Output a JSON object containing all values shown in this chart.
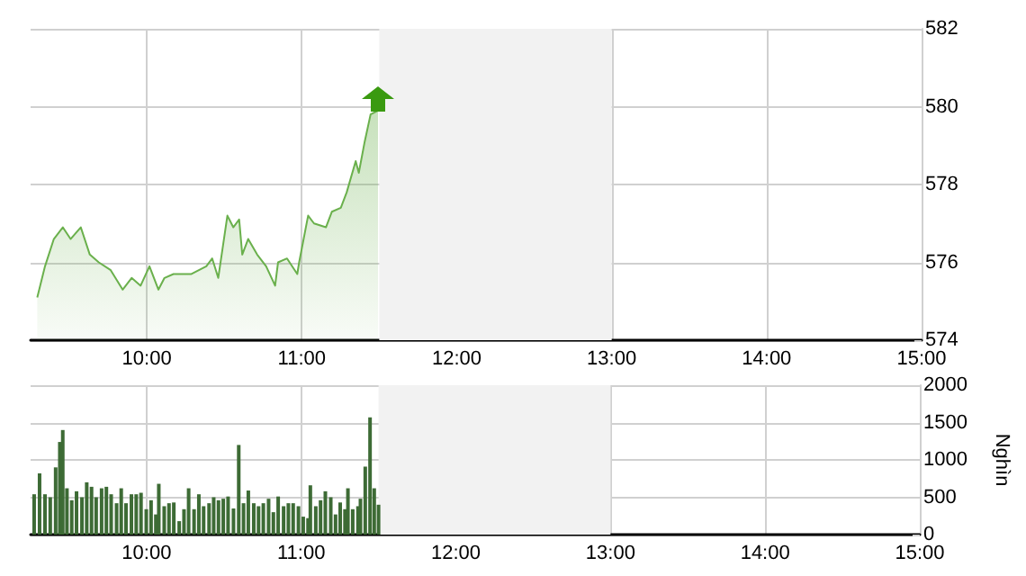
{
  "chart_data": [
    {
      "type": "area",
      "color": "#6ab04c",
      "x": [
        9.293,
        9.343,
        9.4,
        9.458,
        9.508,
        9.574,
        9.632,
        9.69,
        9.767,
        9.844,
        9.902,
        9.96,
        10.017,
        10.075,
        10.114,
        10.172,
        10.288,
        10.384,
        10.422,
        10.461,
        10.52,
        10.558,
        10.596,
        10.616,
        10.654,
        10.712,
        10.77,
        10.828,
        10.847,
        10.905,
        10.971,
        10.983,
        11.041,
        11.079,
        11.156,
        11.194,
        11.252,
        11.29,
        11.348,
        11.368,
        11.406,
        11.444,
        11.492
      ],
      "values": [
        575.1,
        575.9,
        576.6,
        576.9,
        576.6,
        576.9,
        576.2,
        576.0,
        575.8,
        575.3,
        575.6,
        575.4,
        575.9,
        575.3,
        575.6,
        575.7,
        575.7,
        575.9,
        576.1,
        575.6,
        577.2,
        576.9,
        577.1,
        576.2,
        576.6,
        576.2,
        575.9,
        575.4,
        576.0,
        576.1,
        575.7,
        576.0,
        577.2,
        577.0,
        576.9,
        577.3,
        577.4,
        577.8,
        578.6,
        578.3,
        579.1,
        579.8,
        579.9
      ],
      "xlim": [
        9.25,
        15
      ],
      "xticks": [
        {
          "value": 10,
          "label": "10:00"
        },
        {
          "value": 11,
          "label": "11:00"
        },
        {
          "value": 12,
          "label": "12:00"
        },
        {
          "value": 13,
          "label": "13:00"
        },
        {
          "value": 14,
          "label": "14:00"
        },
        {
          "value": 15,
          "label": "15:00"
        }
      ],
      "ylim": [
        574,
        582
      ],
      "yticks": [
        574,
        576,
        578,
        580,
        582
      ],
      "bands": [
        {
          "axis": "x",
          "from": 11.5,
          "to": 13,
          "color": "#f2f2f2"
        }
      ],
      "grid": true
    },
    {
      "type": "bar",
      "color": "#3d6b35",
      "ylabel": "Nghìn",
      "x": [
        9.273,
        9.308,
        9.343,
        9.377,
        9.412,
        9.439,
        9.458,
        9.485,
        9.516,
        9.547,
        9.582,
        9.613,
        9.644,
        9.674,
        9.709,
        9.74,
        9.771,
        9.806,
        9.836,
        9.867,
        9.902,
        9.933,
        9.964,
        9.998,
        10.029,
        10.06,
        10.079,
        10.114,
        10.145,
        10.176,
        10.211,
        10.242,
        10.272,
        10.307,
        10.338,
        10.369,
        10.404,
        10.434,
        10.465,
        10.496,
        10.527,
        10.562,
        10.596,
        10.627,
        10.658,
        10.693,
        10.724,
        10.755,
        10.789,
        10.82,
        10.851,
        10.886,
        10.917,
        10.948,
        10.982,
        11.013,
        11.044,
        11.059,
        11.094,
        11.125,
        11.156,
        11.191,
        11.222,
        11.252,
        11.283,
        11.302,
        11.333,
        11.367,
        11.383,
        11.414,
        11.445,
        11.472,
        11.5
      ],
      "values": [
        540,
        820,
        540,
        500,
        900,
        1240,
        1400,
        620,
        460,
        580,
        500,
        700,
        640,
        500,
        620,
        640,
        540,
        420,
        620,
        420,
        540,
        540,
        560,
        340,
        460,
        270,
        680,
        380,
        420,
        430,
        180,
        340,
        620,
        340,
        540,
        380,
        420,
        500,
        460,
        480,
        510,
        350,
        1200,
        420,
        590,
        420,
        380,
        420,
        480,
        300,
        510,
        380,
        420,
        420,
        380,
        240,
        220,
        660,
        380,
        460,
        580,
        500,
        270,
        430,
        340,
        620,
        340,
        380,
        480,
        910,
        1570,
        620,
        400
      ],
      "xlim": [
        9.25,
        15
      ],
      "xticks": [
        {
          "value": 10,
          "label": "10:00"
        },
        {
          "value": 11,
          "label": "11:00"
        },
        {
          "value": 12,
          "label": "12:00"
        },
        {
          "value": 13,
          "label": "13:00"
        },
        {
          "value": 14,
          "label": "14:00"
        },
        {
          "value": 15,
          "label": "15:00"
        }
      ],
      "ylim": [
        0,
        2000
      ],
      "yticks": [
        0,
        500,
        1000,
        1500,
        2000
      ],
      "bands": [
        {
          "axis": "x",
          "from": 11.5,
          "to": 13,
          "color": "#f2f2f2"
        }
      ],
      "grid": true
    }
  ]
}
